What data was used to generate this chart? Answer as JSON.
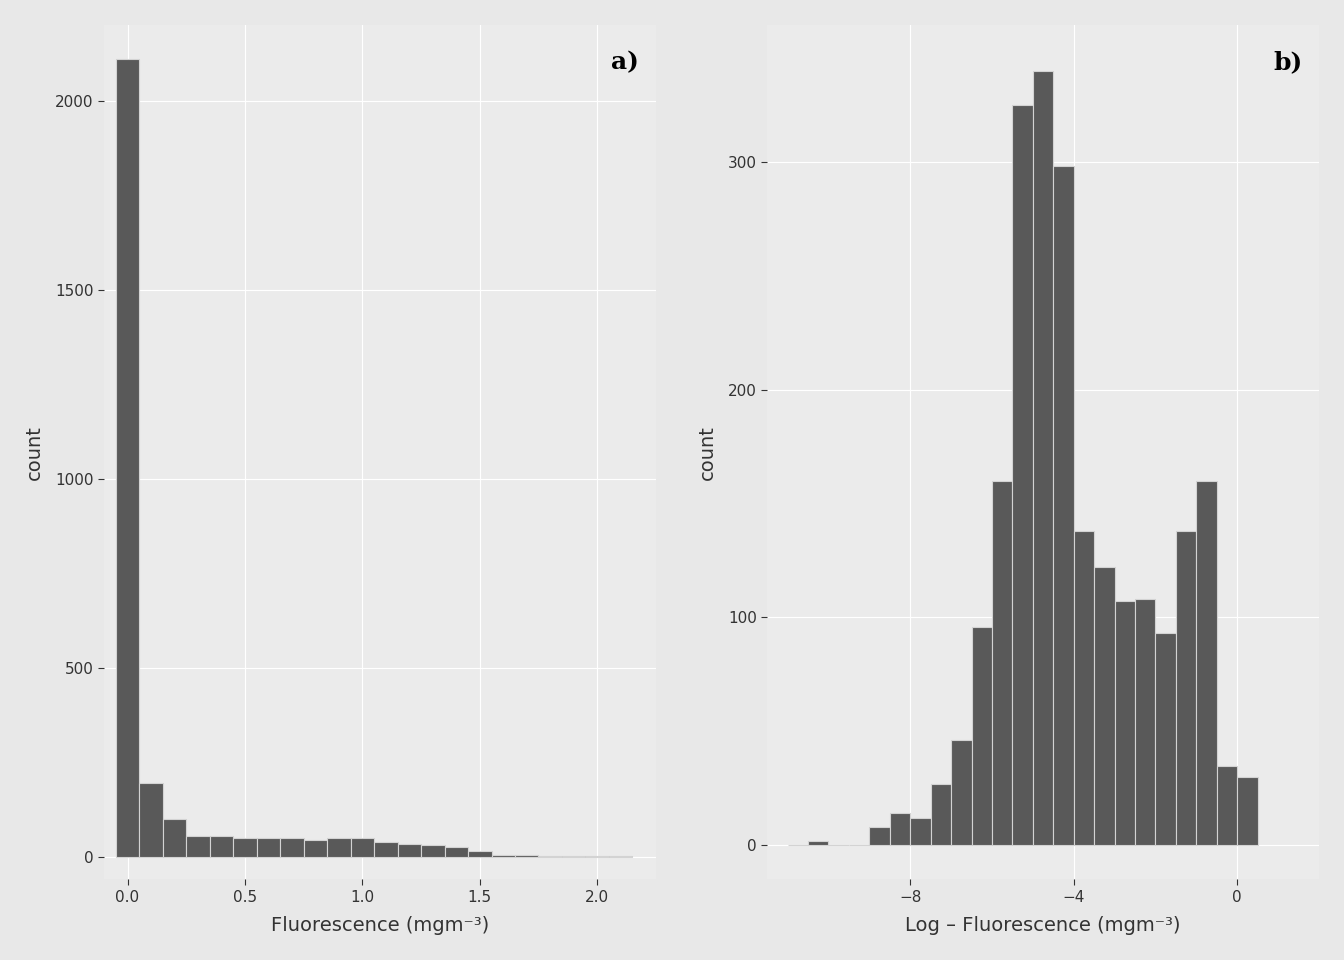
{
  "panel_a": {
    "label": "a)",
    "xlabel": "Fluorescence (mgm⁻³)",
    "ylabel": "count",
    "bar_color": "#595959",
    "edge_color": "#d3d3d3",
    "xlim": [
      -0.1,
      2.25
    ],
    "ylim": [
      -60,
      2200
    ],
    "xticks": [
      0.0,
      0.5,
      1.0,
      1.5,
      2.0
    ],
    "yticks": [
      0,
      500,
      1000,
      1500,
      2000
    ],
    "bin_edges": [
      -0.05,
      0.05,
      0.15,
      0.25,
      0.35,
      0.45,
      0.55,
      0.65,
      0.75,
      0.85,
      0.95,
      1.05,
      1.15,
      1.25,
      1.35,
      1.45,
      1.55,
      1.65,
      1.75,
      1.85,
      1.95,
      2.05,
      2.15
    ],
    "counts": [
      2110,
      195,
      100,
      55,
      55,
      50,
      50,
      50,
      45,
      50,
      50,
      40,
      35,
      30,
      25,
      15,
      5,
      5,
      2,
      1,
      1,
      1
    ]
  },
  "panel_b": {
    "label": "b)",
    "xlabel": "Log – Fluorescence (mgm⁻³)",
    "ylabel": "count",
    "bar_color": "#595959",
    "edge_color": "#d3d3d3",
    "xlim": [
      -11.5,
      2.0
    ],
    "ylim": [
      -15,
      360
    ],
    "xticks": [
      -8,
      -4,
      0
    ],
    "yticks": [
      0,
      100,
      200,
      300
    ],
    "bin_edges": [
      -11.0,
      -10.5,
      -10.0,
      -9.5,
      -9.0,
      -8.5,
      -8.0,
      -7.5,
      -7.0,
      -6.5,
      -6.0,
      -5.5,
      -5.0,
      -4.5,
      -4.0,
      -3.5,
      -3.0,
      -2.5,
      -2.0,
      -1.5,
      -1.0,
      -0.5,
      0.0,
      0.5
    ],
    "counts": [
      0,
      2,
      0,
      0,
      8,
      14,
      12,
      27,
      46,
      96,
      160,
      325,
      340,
      298,
      138,
      122,
      107,
      108,
      93,
      138,
      160,
      35,
      30
    ]
  },
  "outer_bg": "#e8e8e8",
  "panel_bg": "#ebebeb",
  "grid_color": "#ffffff",
  "label_fontsize": 14,
  "tick_fontsize": 11,
  "panel_label_fontsize": 18
}
